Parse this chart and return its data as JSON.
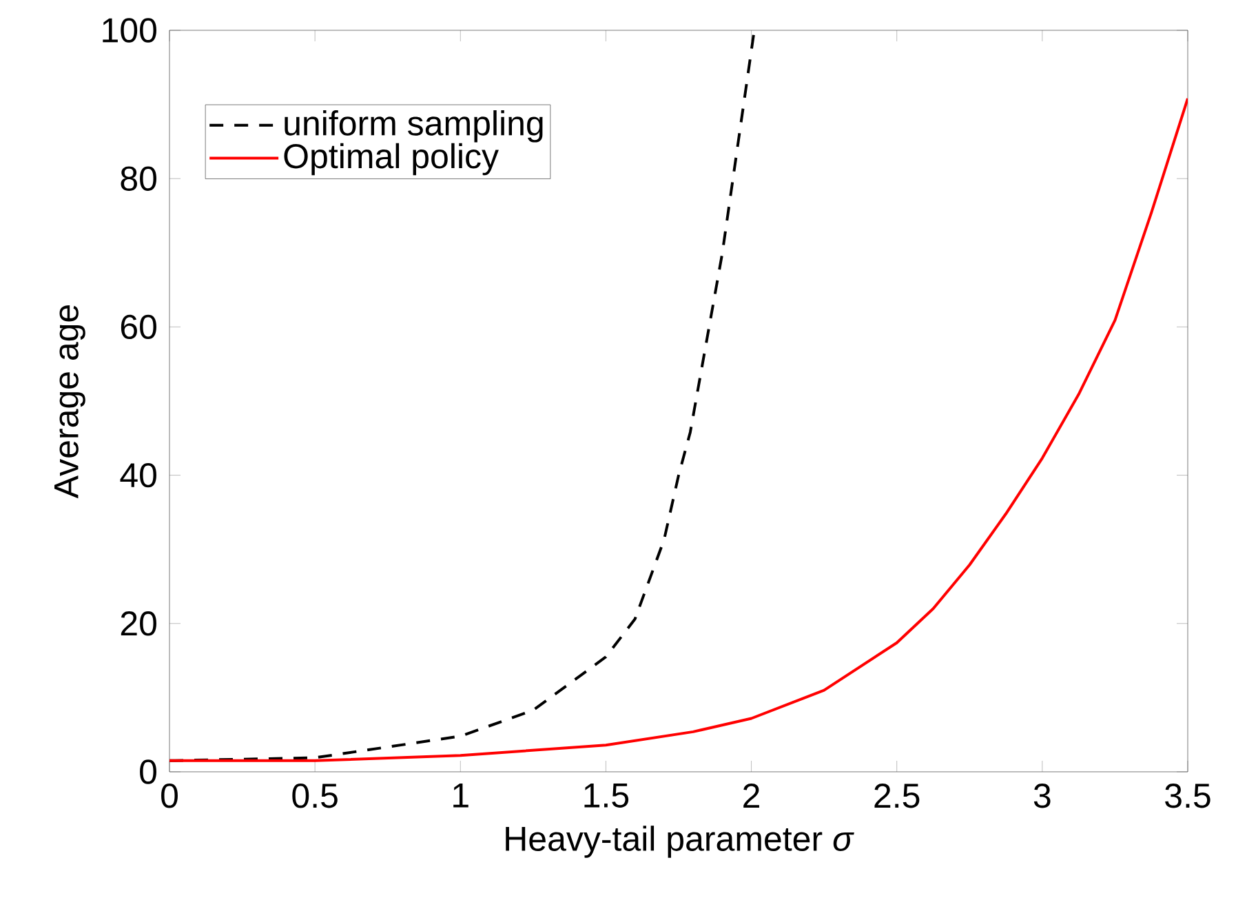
{
  "chart_data": {
    "type": "line",
    "xlabel": "Heavy-tail parameter *σ*",
    "ylabel": "Average age",
    "xlim": [
      0,
      3.5
    ],
    "ylim": [
      0,
      100
    ],
    "xticks": [
      0,
      0.5,
      1,
      1.5,
      2,
      2.5,
      3,
      3.5
    ],
    "yticks": [
      0,
      20,
      40,
      60,
      80,
      100
    ],
    "legend": "top left",
    "grid": false,
    "series": [
      {
        "name": "uniform sampling",
        "color": "#000000",
        "line_style": "dashed",
        "x": [
          0,
          0.5,
          1.0,
          1.25,
          1.5,
          1.6,
          1.7,
          1.75,
          1.79,
          1.9,
          1.95,
          2.01
        ],
        "values": [
          1.5,
          1.9,
          4.8,
          8.3,
          15.5,
          20.6,
          31.3,
          40,
          45.8,
          69.9,
          83.6,
          100
        ]
      },
      {
        "name": "Optimal policy",
        "color": "#ff0000",
        "line_style": "solid",
        "x": [
          0,
          0.5,
          1.0,
          1.5,
          1.8,
          2.0,
          2.25,
          2.5,
          2.625,
          2.75,
          2.875,
          3.0,
          3.125,
          3.25,
          3.375,
          3.5
        ],
        "values": [
          1.5,
          1.5,
          2.2,
          3.6,
          5.4,
          7.2,
          11.0,
          17.4,
          22.0,
          27.9,
          34.8,
          42.3,
          50.9,
          60.9,
          75.4,
          90.8
        ]
      }
    ]
  }
}
